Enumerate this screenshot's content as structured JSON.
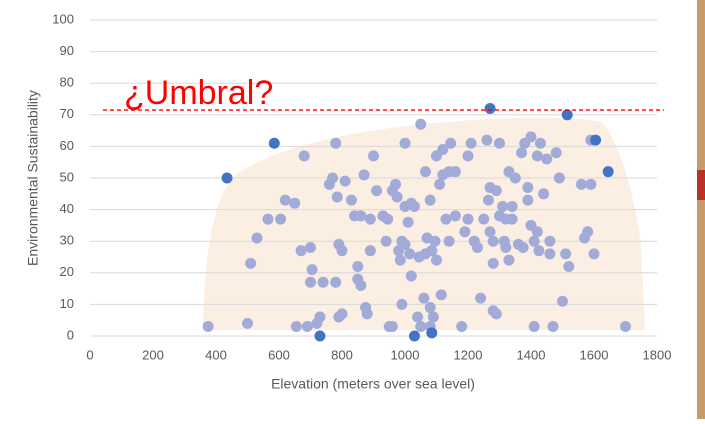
{
  "chart_data": {
    "type": "scatter",
    "x_label": "Elevation (meters over sea level)",
    "y_label": "Environmental Sustainability",
    "annotation": "¿Umbral?",
    "threshold": 71.5,
    "threshold_color": "#ff0000",
    "xlim": [
      0,
      1800
    ],
    "xticks": [
      0,
      200,
      400,
      600,
      800,
      1000,
      1200,
      1400,
      1600,
      1800
    ],
    "ylim": [
      0,
      100
    ],
    "yticks": [
      0,
      10,
      20,
      30,
      40,
      50,
      60,
      70,
      80,
      90,
      100
    ],
    "grid": true,
    "series": [
      {
        "color": "#a2abd8",
        "x": [
          375,
          500,
          510,
          530,
          565,
          605,
          620,
          650,
          655,
          670,
          680,
          690,
          700,
          705,
          700,
          720,
          730,
          740,
          760,
          770,
          780,
          785,
          780,
          790,
          800,
          790,
          800,
          810,
          830,
          840,
          850,
          860,
          850,
          870,
          860,
          880,
          875,
          890,
          890,
          900,
          910,
          930,
          940,
          945,
          950,
          960,
          960,
          970,
          975,
          980,
          985,
          990,
          990,
          1000,
          1000,
          1000,
          1010,
          1015,
          1020,
          1020,
          1030,
          1040,
          1050,
          1045,
          1050,
          1060,
          1065,
          1070,
          1065,
          1080,
          1080,
          1080,
          1085,
          1090,
          1095,
          1100,
          1100,
          1110,
          1120,
          1115,
          1120,
          1130,
          1140,
          1140,
          1145,
          1160,
          1160,
          1180,
          1190,
          1200,
          1200,
          1210,
          1220,
          1230,
          1240,
          1250,
          1260,
          1265,
          1270,
          1270,
          1280,
          1280,
          1280,
          1290,
          1290,
          1300,
          1300,
          1310,
          1315,
          1320,
          1320,
          1330,
          1330,
          1340,
          1340,
          1350,
          1360,
          1370,
          1375,
          1380,
          1390,
          1390,
          1400,
          1400,
          1410,
          1410,
          1420,
          1420,
          1425,
          1430,
          1440,
          1450,
          1460,
          1460,
          1470,
          1480,
          1490,
          1500,
          1510,
          1520,
          1560,
          1570,
          1580,
          1590,
          1600,
          1590,
          1700
        ],
        "values": [
          3,
          4,
          23,
          31,
          37,
          37,
          43,
          42,
          3,
          27,
          57,
          3,
          28,
          21,
          17,
          4,
          6,
          17,
          48,
          50,
          61,
          44,
          17,
          29,
          27,
          6,
          7,
          49,
          43,
          38,
          22,
          38,
          18,
          51,
          16,
          7,
          9,
          27,
          37,
          57,
          46,
          38,
          30,
          37,
          3,
          3,
          46,
          48,
          44,
          27,
          24,
          10,
          30,
          41,
          29,
          61,
          36,
          26,
          19,
          42,
          41,
          6,
          3,
          25,
          67,
          12,
          26,
          31,
          52,
          43,
          9,
          3,
          27,
          6,
          30,
          24,
          57,
          48,
          51,
          13,
          59,
          37,
          30,
          52,
          61,
          52,
          38,
          3,
          33,
          57,
          37,
          61,
          30,
          28,
          12,
          37,
          62,
          43,
          47,
          33,
          30,
          8,
          23,
          46,
          7,
          61,
          38,
          41,
          30,
          37,
          28,
          52,
          24,
          41,
          37,
          50,
          29,
          58,
          28,
          61,
          43,
          47,
          35,
          63,
          3,
          30,
          57,
          33,
          27,
          61,
          45,
          56,
          26,
          30,
          3,
          58,
          50,
          11,
          26,
          22,
          48,
          31,
          33,
          48,
          26,
          62,
          3
        ]
      },
      {
        "color": "#4472c4",
        "x": [
          435,
          585,
          730,
          1030,
          1085,
          1270,
          1515,
          1605,
          1645
        ],
        "values": [
          50,
          61,
          0,
          0,
          1,
          72,
          70,
          62,
          52
        ]
      }
    ]
  }
}
